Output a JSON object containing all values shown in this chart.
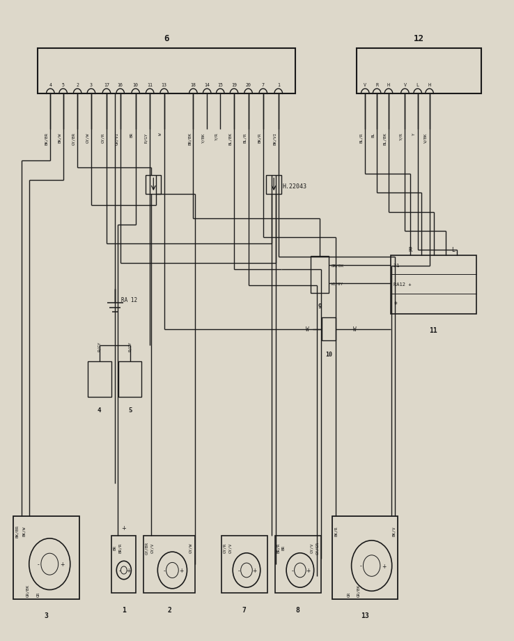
{
  "bg_color": "#ddd8ca",
  "line_color": "#1a1a1a",
  "pin6_actual": [
    [
      0.095,
      "4",
      "BK/BR"
    ],
    [
      0.12,
      "5",
      "BK/W"
    ],
    [
      0.148,
      "2",
      "GY/BR"
    ],
    [
      0.175,
      "3",
      "GY/W"
    ],
    [
      0.205,
      "17",
      "GY/R"
    ],
    [
      0.232,
      "16",
      "GR/VI"
    ],
    [
      0.262,
      "10",
      "BR"
    ],
    [
      0.29,
      "11",
      "R/GY"
    ],
    [
      0.318,
      "13",
      "W"
    ],
    [
      0.375,
      "18",
      "BR/BK"
    ],
    [
      0.402,
      "14",
      "Y/BK"
    ],
    [
      0.428,
      "15",
      "Y/R"
    ],
    [
      0.455,
      "19",
      "BL/BK"
    ],
    [
      0.483,
      "20",
      "BL/R"
    ],
    [
      0.512,
      "7",
      "BK/R"
    ],
    [
      0.542,
      "1",
      "BK/VI"
    ]
  ],
  "pin12_actual": [
    [
      0.712,
      "V",
      "BL/R"
    ],
    [
      0.735,
      "R",
      "BL"
    ],
    [
      0.758,
      "H",
      "BL/BK"
    ],
    [
      0.79,
      "V",
      "Y/R"
    ],
    [
      0.815,
      "L",
      "Y"
    ],
    [
      0.838,
      "H",
      "V/BK"
    ]
  ]
}
